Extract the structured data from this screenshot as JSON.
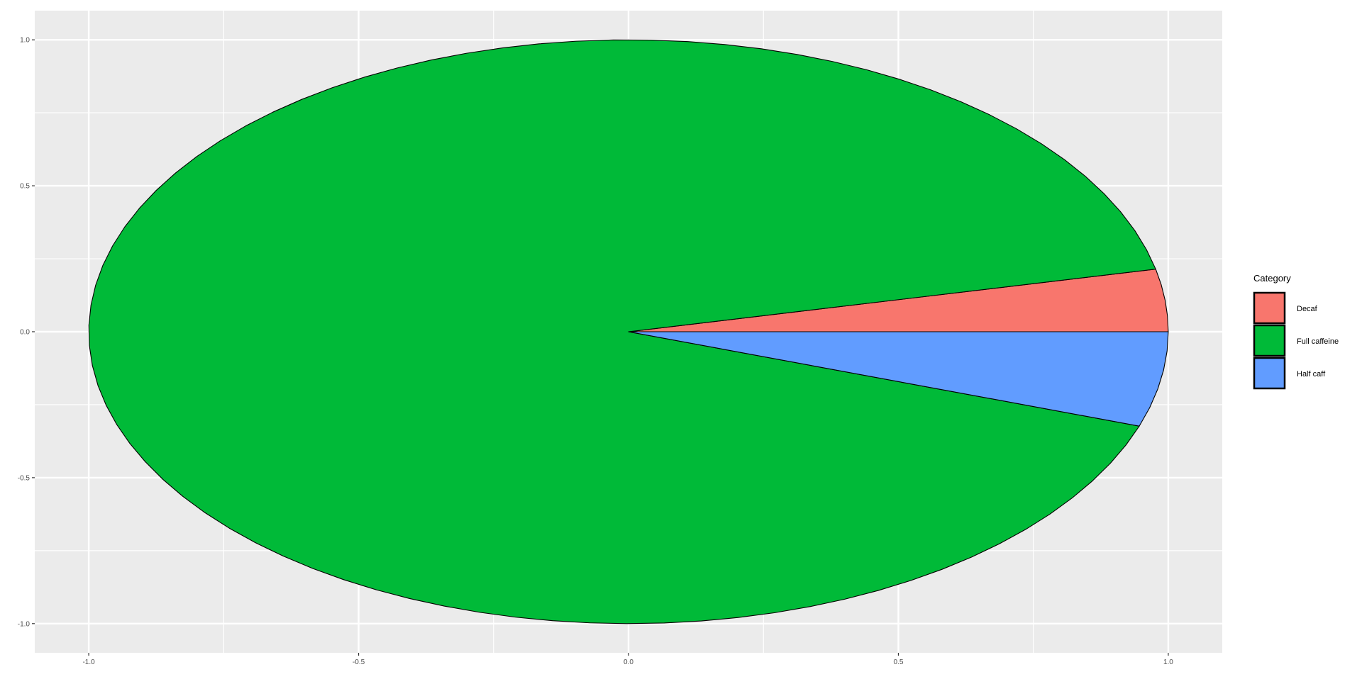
{
  "chart_data": {
    "type": "pie",
    "title": "",
    "xlabel": "",
    "ylabel": "",
    "xlim": [
      -1.1,
      1.1
    ],
    "ylim": [
      -1.1,
      1.1
    ],
    "x_ticks": [
      -1.0,
      -0.5,
      0.0,
      0.5,
      1.0
    ],
    "y_ticks": [
      -1.0,
      -0.5,
      0.0,
      0.5,
      1.0
    ],
    "x_tick_labels": [
      "-1.0",
      "-0.5",
      "0.0",
      "0.5",
      "1.0"
    ],
    "y_tick_labels": [
      "-1.0",
      "-0.5",
      "0.0",
      "0.5",
      "1.0"
    ],
    "grid": true,
    "panel_background": "#EBEBEB",
    "legend": {
      "title": "Category",
      "position": "right",
      "entries": [
        "Decaf",
        "Full caffeine",
        "Half caff"
      ]
    },
    "slices": [
      {
        "label": "Decaf",
        "value": 3.44,
        "color": "#F8766D"
      },
      {
        "label": "Full caffeine",
        "value": 91.32,
        "color": "#00BA38"
      },
      {
        "label": "Half caff",
        "value": 5.24,
        "color": "#619CFF"
      }
    ],
    "start_angle_deg": 0,
    "direction": "counterclockwise"
  }
}
